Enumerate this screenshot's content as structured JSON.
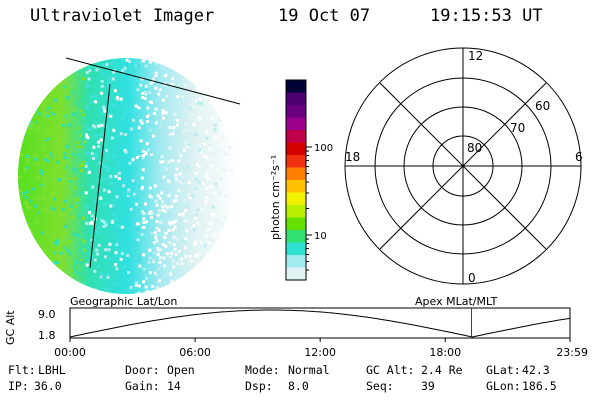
{
  "header": {
    "title": "Ultraviolet Imager",
    "date": "19 Oct 07",
    "time": "19:15:53 UT"
  },
  "colorbar": {
    "unit_label": "photon cm⁻²s⁻¹",
    "ticks": [
      {
        "label": "100",
        "value": 100
      },
      {
        "label": "10",
        "value": 10
      }
    ],
    "colors": [
      "#000033",
      "#4b0070",
      "#6a0080",
      "#9b008b",
      "#c0004a",
      "#d40000",
      "#f03010",
      "#ff8000",
      "#ffc000",
      "#f2f200",
      "#b8f000",
      "#66e000",
      "#30e070",
      "#30e0d0",
      "#a0eaf0",
      "#e0f4f4"
    ]
  },
  "polar": {
    "lat_labels": [
      "80",
      "70",
      "60"
    ],
    "mlt_labels": {
      "top": "12",
      "left": "18",
      "right": "6",
      "bottom": "0"
    }
  },
  "timeline": {
    "left_title": "Geographic Lat/Lon",
    "right_title": "Apex MLat/MLT",
    "y_axis_label": "GC Alt",
    "y_ticks": [
      "9.0",
      "1.8"
    ],
    "x_ticks": [
      "00:00",
      "06:00",
      "12:00",
      "18:00",
      "23:59"
    ],
    "current_time_hours": 19.26,
    "marker_color": "#c00000"
  },
  "footer": {
    "row1": [
      {
        "key": "Flt:",
        "value": "LBHL"
      },
      {
        "key": "Door:",
        "value": "Open"
      },
      {
        "key": "Mode:",
        "value": "Normal"
      },
      {
        "key": "GC Alt:",
        "value": "2.4 Re"
      },
      {
        "key": "GLat:",
        "value": "42.3"
      }
    ],
    "row2": [
      {
        "key": "IP:",
        "value": "36.0"
      },
      {
        "key": "Gain:",
        "value": "14"
      },
      {
        "key": "Dsp:",
        "value": "8.0"
      },
      {
        "key": "Seq:",
        "value": "39"
      },
      {
        "key": "GLon:",
        "value": "186.5"
      }
    ]
  }
}
